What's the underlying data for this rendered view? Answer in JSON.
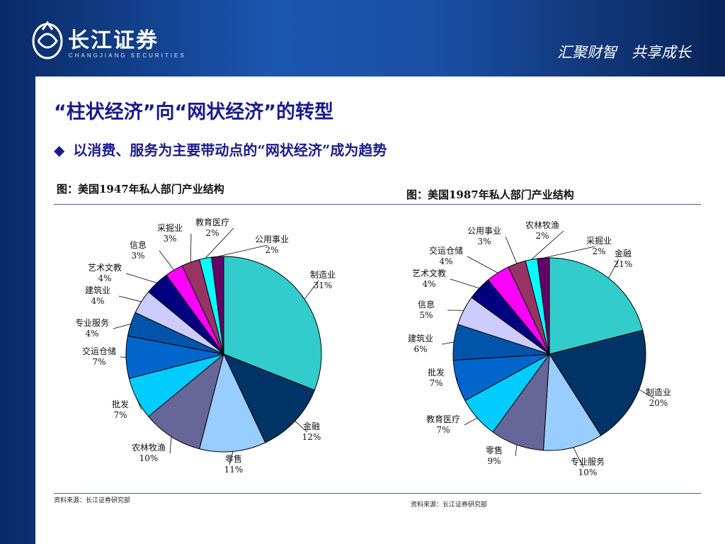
{
  "header": {
    "logo_cn": "长江证券",
    "logo_en": "CHANGJIANG SECURITIES",
    "slogan": "汇聚财智　共享成长"
  },
  "title": "“柱状经济”向“网状经济”的转型",
  "bullet": {
    "icon": "◆",
    "text": "以消费、服务为主要带动点的“网状经济”成为趋势"
  },
  "colors": {
    "bg_blue": "#1b56b0",
    "title": "#1a1a8c",
    "slice": [
      "#33cccc",
      "#003366",
      "#99ccff",
      "#666699",
      "#00ccff",
      "#0066cc",
      "#0055aa",
      "#ccccff",
      "#000080",
      "#ff00ff",
      "#993366",
      "#00ffff",
      "#660066"
    ]
  },
  "chart_data": [
    {
      "type": "pie",
      "title": "图：美国1947年私人部门产业结构",
      "source": "资料来源：长江证券研究部",
      "slices": [
        {
          "name": "制造业",
          "value": 31,
          "label": "31%"
        },
        {
          "name": "金融",
          "value": 12,
          "label": "12%"
        },
        {
          "name": "零售",
          "value": 11,
          "label": "11%"
        },
        {
          "name": "农林牧渔",
          "value": 10,
          "label": "10%"
        },
        {
          "name": "批发",
          "value": 7,
          "label": "7%"
        },
        {
          "name": "交运仓储",
          "value": 7,
          "label": "7%"
        },
        {
          "name": "专业服务",
          "value": 4,
          "label": "4%"
        },
        {
          "name": "建筑业",
          "value": 4,
          "label": "4%"
        },
        {
          "name": "艺术文教",
          "value": 4,
          "label": "4%"
        },
        {
          "name": "信息",
          "value": 3,
          "label": "3%"
        },
        {
          "name": "采掘业",
          "value": 3,
          "label": "3%"
        },
        {
          "name": "教育医疗",
          "value": 2,
          "label": "2%"
        },
        {
          "name": "公用事业",
          "value": 2,
          "label": "2%"
        }
      ]
    },
    {
      "type": "pie",
      "title": "图：美国1987年私人部门产业结构",
      "source": "资料来源：长江证券研究部",
      "slices": [
        {
          "name": "金融",
          "value": 21,
          "label": "21%"
        },
        {
          "name": "制造业",
          "value": 20,
          "label": "20%"
        },
        {
          "name": "专业服务",
          "value": 10,
          "label": "10%"
        },
        {
          "name": "零售",
          "value": 9,
          "label": "9%"
        },
        {
          "name": "教育医疗",
          "value": 7,
          "label": "7%"
        },
        {
          "name": "批发",
          "value": 7,
          "label": "7%"
        },
        {
          "name": "建筑业",
          "value": 6,
          "label": "6%"
        },
        {
          "name": "信息",
          "value": 5,
          "label": "5%"
        },
        {
          "name": "艺术文教",
          "value": 4,
          "label": "4%"
        },
        {
          "name": "交运仓储",
          "value": 4,
          "label": "4%"
        },
        {
          "name": "公用事业",
          "value": 3,
          "label": "3%"
        },
        {
          "name": "农林牧渔",
          "value": 2,
          "label": "2%"
        },
        {
          "name": "采掘业",
          "value": 2,
          "label": "2%"
        }
      ]
    }
  ]
}
